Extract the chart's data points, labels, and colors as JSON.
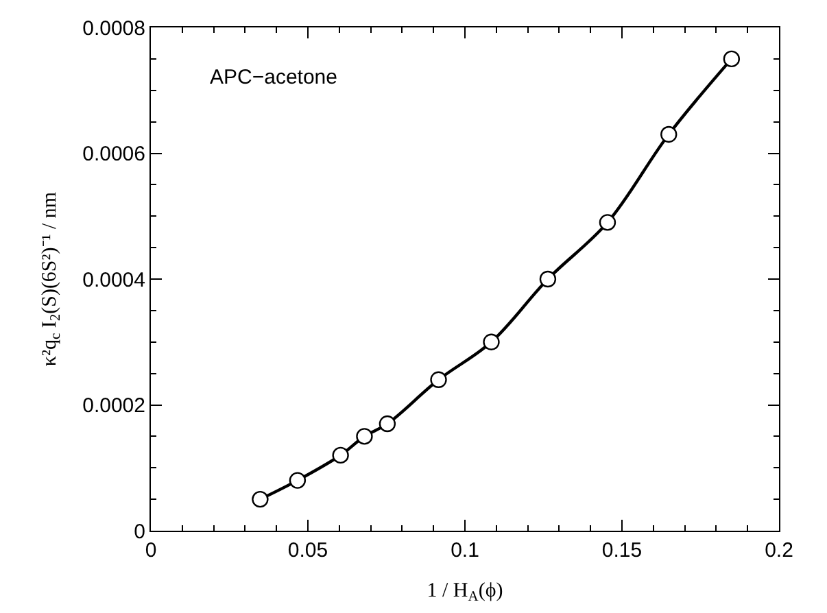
{
  "chart_data": {
    "type": "line",
    "xlabel": "1 / H$_{A}$(ϕ)",
    "ylabel": "κ²q$_{c}$ I$_{2}$(S)(6S²)⁻¹ / nm",
    "annotations": [
      "APC−acetone"
    ],
    "x": [
      0.0348,
      0.0467,
      0.0604,
      0.068,
      0.0753,
      0.0916,
      0.1084,
      0.1264,
      0.1454,
      0.1649,
      0.1849
    ],
    "series": [
      {
        "color": "#000000",
        "values": [
          5e-05,
          8e-05,
          0.00012,
          0.00015,
          0.00017,
          0.00024,
          0.0003,
          0.0004,
          0.00049,
          0.00063,
          0.00075
        ]
      }
    ],
    "xlim": [
      0,
      0.2
    ],
    "xticks": [
      0,
      0.05,
      0.1,
      0.15,
      0.2
    ],
    "ylim": [
      0,
      0.0008
    ],
    "yticks": [
      0,
      0.0002,
      0.0004,
      0.0006,
      0.0008
    ],
    "marker": "circle",
    "line_style": "solid"
  }
}
